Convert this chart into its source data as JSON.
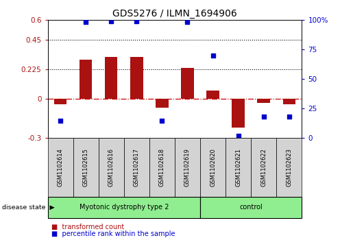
{
  "title": "GDS5276 / ILMN_1694906",
  "samples": [
    "GSM1102614",
    "GSM1102615",
    "GSM1102616",
    "GSM1102617",
    "GSM1102618",
    "GSM1102619",
    "GSM1102620",
    "GSM1102621",
    "GSM1102622",
    "GSM1102623"
  ],
  "red_bars": [
    -0.04,
    0.3,
    0.32,
    0.32,
    -0.07,
    0.235,
    0.065,
    -0.22,
    -0.03,
    -0.04
  ],
  "blue_dots_pct": [
    15,
    98,
    99,
    99,
    15,
    98,
    70,
    2,
    18,
    18
  ],
  "ylim_left": [
    -0.3,
    0.6
  ],
  "ylim_right": [
    0,
    100
  ],
  "yticks_left": [
    -0.3,
    0,
    0.225,
    0.45,
    0.6
  ],
  "yticks_right": [
    0,
    25,
    50,
    75,
    100
  ],
  "hlines": [
    0.225,
    0.45
  ],
  "n_disease": 6,
  "n_control": 4,
  "disease_label_1": "Myotonic dystrophy type 2",
  "disease_label_2": "control",
  "group_color": "#90EE90",
  "bar_color": "#aa1111",
  "dot_color": "#0000cc",
  "zero_line_color": "#cc0000",
  "background_color": "#ffffff",
  "label_box_color": "#d3d3d3",
  "disease_state_label": "disease state",
  "legend_red": "transformed count",
  "legend_blue": "percentile rank within the sample"
}
